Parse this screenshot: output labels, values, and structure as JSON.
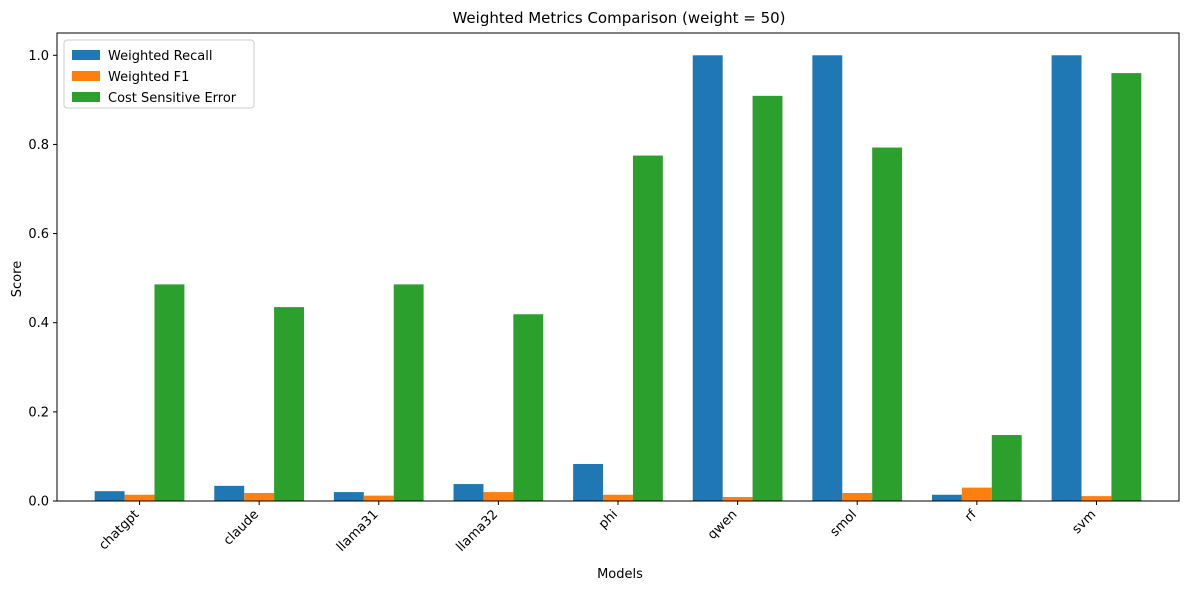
{
  "chart_data": {
    "type": "bar",
    "title": "Weighted Metrics Comparison (weight = 50)",
    "xlabel": "Models",
    "ylabel": "Score",
    "ylim": [
      0,
      1.05
    ],
    "yticks": [
      "0.0",
      "0.2",
      "0.4",
      "0.6",
      "0.8",
      "1.0"
    ],
    "ytick_values": [
      0,
      0.2,
      0.4,
      0.6,
      0.8,
      1.0
    ],
    "grid": false,
    "legend_position": "top-left",
    "categories": [
      "chatgpt",
      "claude",
      "llama31",
      "llama32",
      "phi",
      "qwen",
      "smol",
      "rf",
      "svm"
    ],
    "series": [
      {
        "name": "Weighted Recall",
        "color": "#1f77b4",
        "values": [
          0.022,
          0.034,
          0.02,
          0.038,
          0.083,
          1.0,
          1.0,
          0.014,
          1.0
        ]
      },
      {
        "name": "Weighted F1",
        "color": "#ff7f0e",
        "values": [
          0.014,
          0.018,
          0.012,
          0.02,
          0.014,
          0.009,
          0.018,
          0.03,
          0.011
        ]
      },
      {
        "name": "Cost Sensitive Error",
        "color": "#2ca02c",
        "values": [
          0.486,
          0.435,
          0.486,
          0.419,
          0.775,
          0.909,
          0.793,
          0.148,
          0.96
        ]
      }
    ]
  }
}
